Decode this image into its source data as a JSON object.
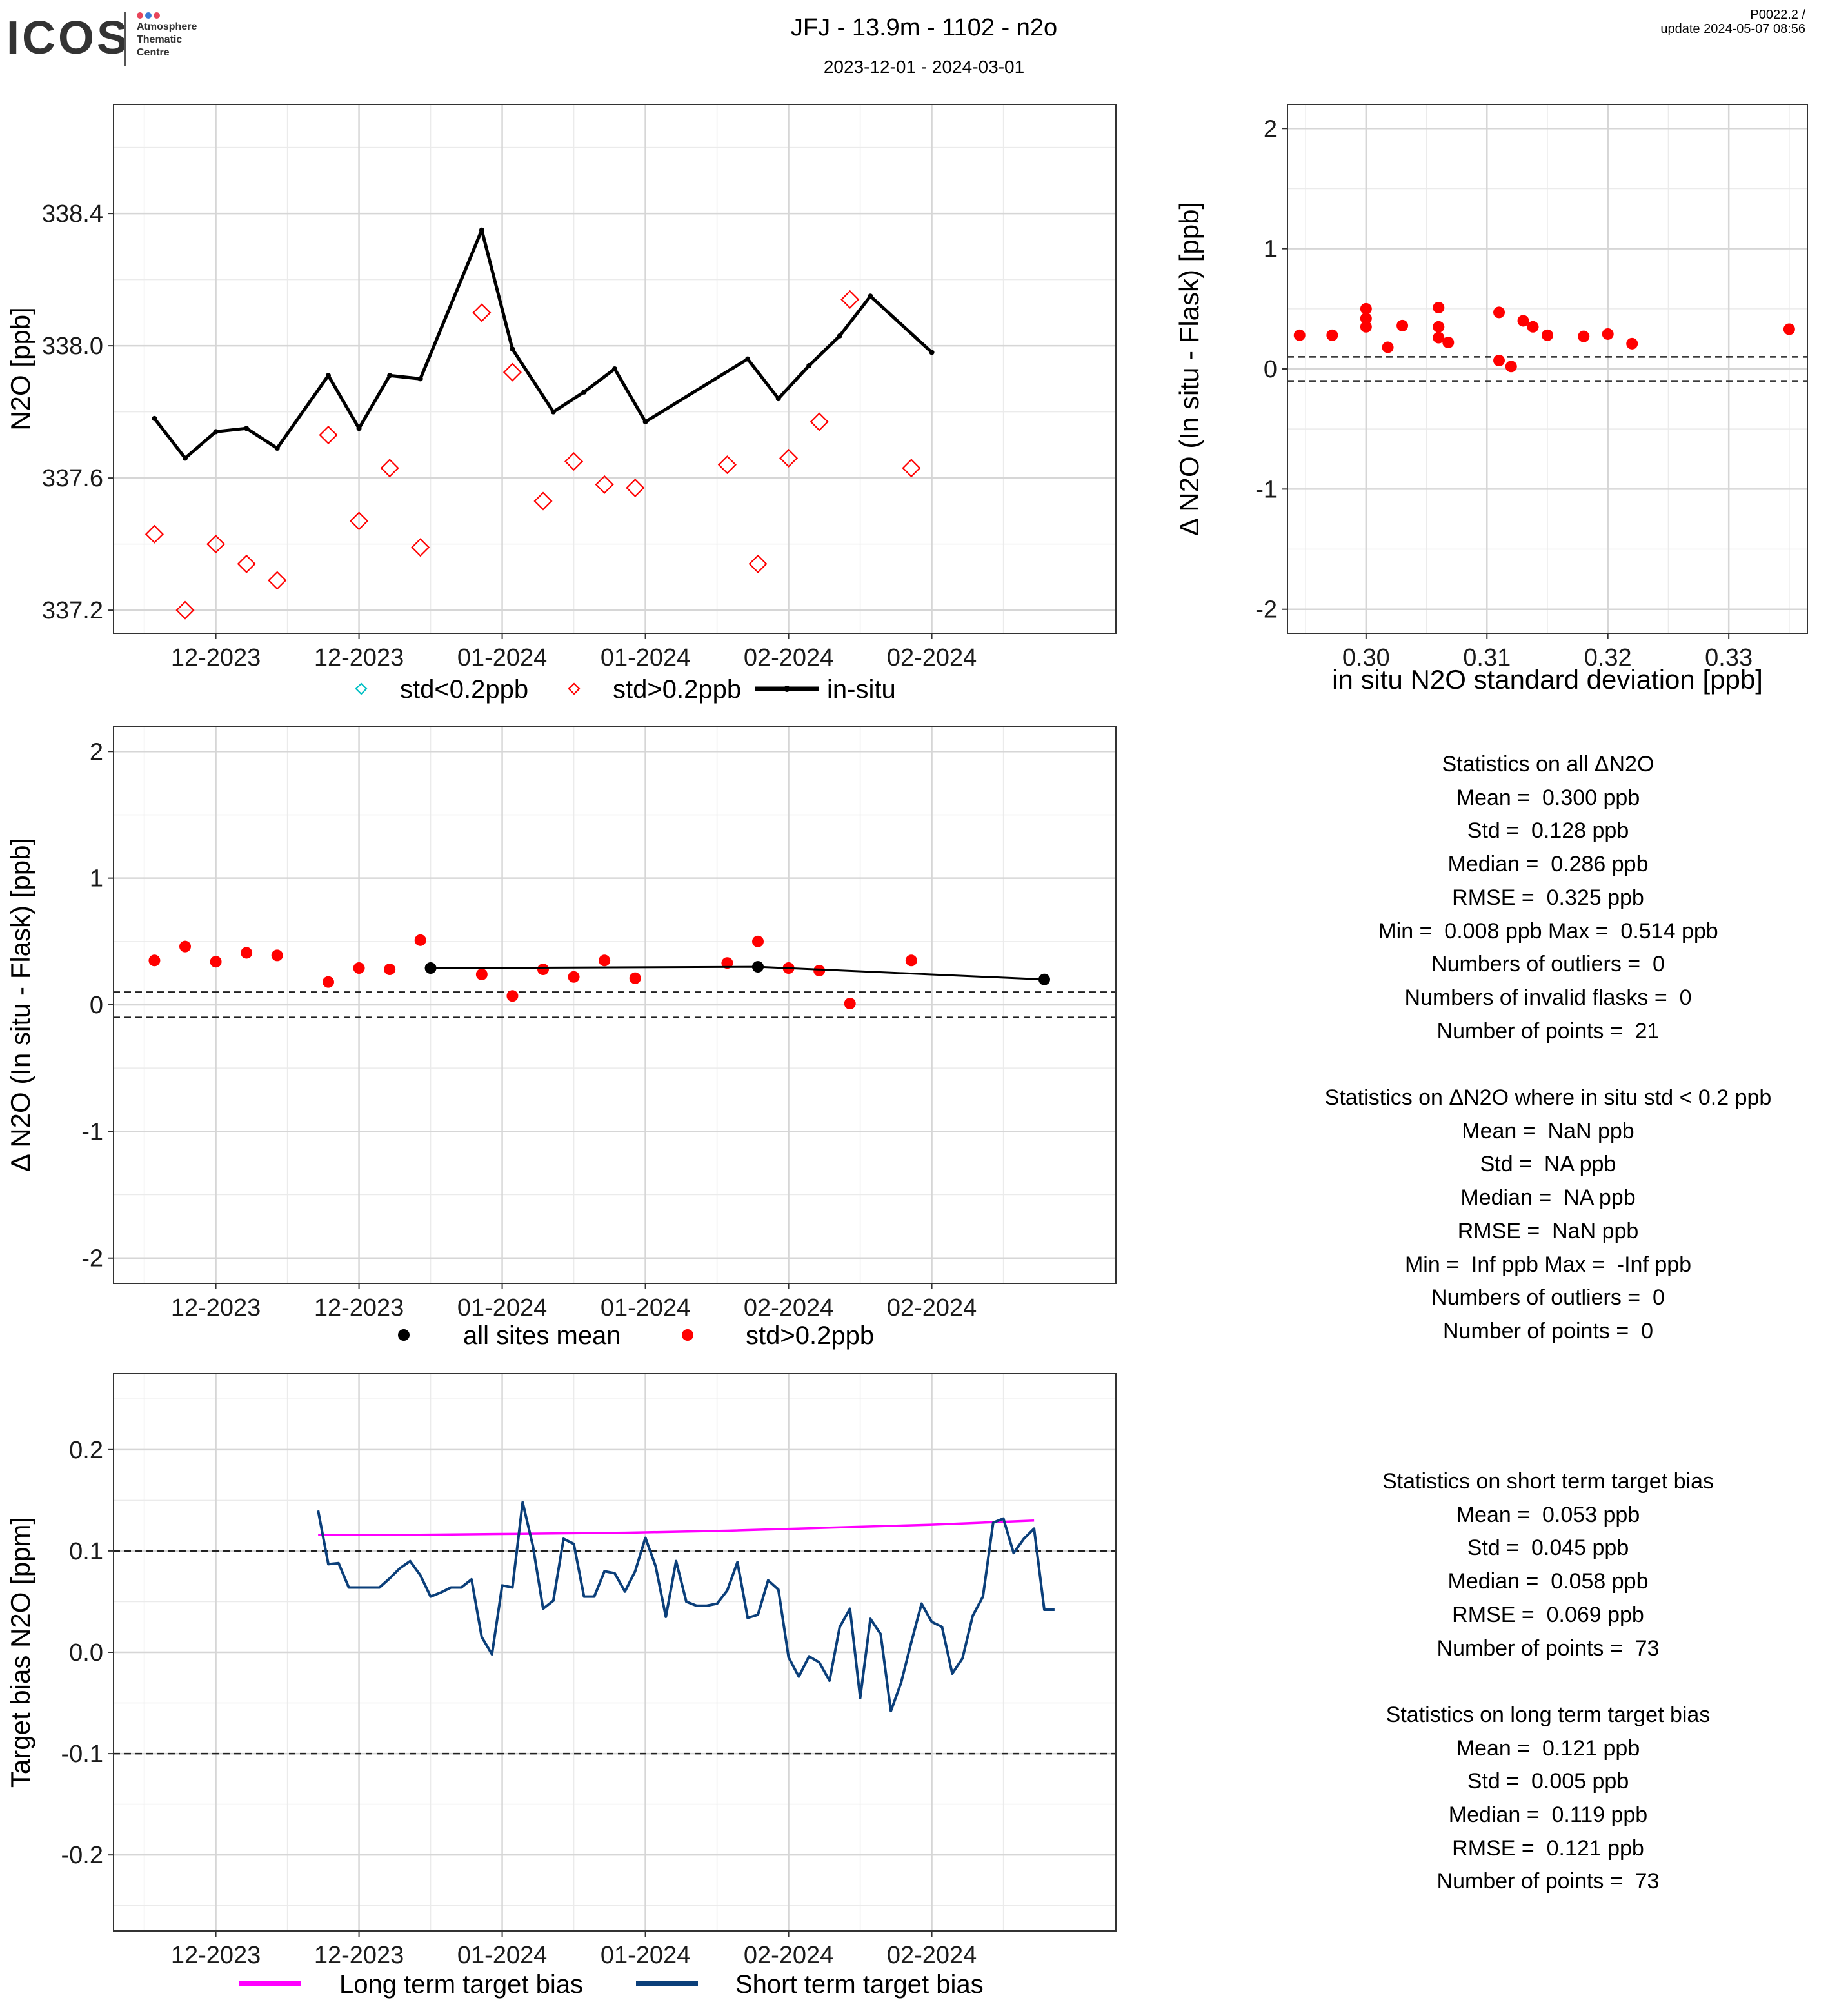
{
  "header": {
    "logo_text": "ICOS",
    "logo_subtitle": [
      "Atmosphere",
      "Thematic",
      "Centre"
    ],
    "title": "JFJ - 13.9m - 1102 - n2o",
    "subtitle": "2023-12-01 - 2024-03-01",
    "version": "P0022.2 /",
    "update": "update  2024-05-07 08:56"
  },
  "colors": {
    "insitu": "#000000",
    "flask_red": "#ff0000",
    "flask_cyan": "#00bfc4",
    "mean_black": "#000000",
    "long_term": "#ff00ff",
    "short_term": "#0b3f7a",
    "logo_dots": [
      "#e8465b",
      "#3a7bd5",
      "#e8465b"
    ]
  },
  "chart_data": [
    {
      "id": "timeseries",
      "type": "line",
      "ylabel": "N2O [ppb]",
      "ylim": [
        337.13,
        338.73
      ],
      "yticks": [
        337.2,
        337.6,
        338.0,
        338.4
      ],
      "ytick_labels": [
        "337.2",
        "337.6",
        "338.0",
        "338.4"
      ],
      "xlim": [
        "2023-11-24",
        "2024-03-01"
      ],
      "xticks": [
        "2023-12-04",
        "2023-12-18",
        "2024-01-01",
        "2024-01-15",
        "2024-01-29",
        "2024-02-12"
      ],
      "xtick_labels": [
        "12-2023",
        "12-2023",
        "01-2024",
        "01-2024",
        "02-2024",
        "02-2024"
      ],
      "grid": true,
      "series": [
        {
          "name": "in-situ",
          "kind": "line",
          "x": [
            "2023-11-28",
            "2023-12-01",
            "2023-12-04",
            "2023-12-07",
            "2023-12-10",
            "2023-12-15",
            "2023-12-18",
            "2023-12-21",
            "2023-12-24",
            "2023-12-30",
            "2024-01-02",
            "2024-01-06",
            "2024-01-09",
            "2024-01-12",
            "2024-01-15",
            "2024-01-25",
            "2024-01-28",
            "2024-01-31",
            "2024-02-03",
            "2024-02-06",
            "2024-02-12"
          ],
          "y": [
            337.78,
            337.66,
            337.74,
            337.75,
            337.69,
            337.91,
            337.75,
            337.91,
            337.9,
            338.35,
            337.99,
            337.8,
            337.86,
            337.93,
            337.77,
            337.96,
            337.84,
            337.94,
            338.03,
            338.15,
            337.98
          ]
        },
        {
          "name": "std>0.2ppb",
          "kind": "diamond",
          "x": [
            "2023-11-28",
            "2023-12-01",
            "2023-12-04",
            "2023-12-07",
            "2023-12-10",
            "2023-12-15",
            "2023-12-18",
            "2023-12-21",
            "2023-12-24",
            "2023-12-30",
            "2024-01-02",
            "2024-01-05",
            "2024-01-08",
            "2024-01-11",
            "2024-01-14",
            "2024-01-23",
            "2024-01-26",
            "2024-01-29",
            "2024-02-01",
            "2024-02-04",
            "2024-02-10"
          ],
          "y": [
            337.43,
            337.2,
            337.4,
            337.34,
            337.29,
            337.73,
            337.47,
            337.63,
            337.39,
            338.1,
            337.92,
            337.53,
            337.65,
            337.58,
            337.57,
            337.64,
            337.34,
            337.66,
            337.77,
            338.14,
            337.63
          ]
        }
      ],
      "legend": [
        "std<0.2ppb",
        "std>0.2ppb",
        "in-situ"
      ],
      "legend_placement": "bottom"
    },
    {
      "id": "scatter",
      "type": "scatter",
      "xlabel": "in situ N2O standard deviation [ppb]",
      "ylabel": "Δ N2O (In situ - Flask) [ppb]",
      "xlim": [
        0.2935,
        0.3365
      ],
      "ylim": [
        -2.2,
        2.2
      ],
      "xticks": [
        0.3,
        0.31,
        0.32,
        0.33
      ],
      "xtick_labels": [
        "0.30",
        "0.31",
        "0.32",
        "0.33"
      ],
      "yticks": [
        -2,
        -1,
        0,
        1,
        2
      ],
      "ytick_labels": [
        "-2",
        "-1",
        "0",
        "1",
        "2"
      ],
      "hlines": [
        0.1,
        -0.1
      ],
      "grid": true,
      "x": [
        0.2945,
        0.2972,
        0.3,
        0.3,
        0.3,
        0.3018,
        0.303,
        0.306,
        0.306,
        0.306,
        0.3068,
        0.311,
        0.311,
        0.312,
        0.313,
        0.3138,
        0.315,
        0.318,
        0.32,
        0.322,
        0.335
      ],
      "y": [
        0.28,
        0.28,
        0.5,
        0.42,
        0.35,
        0.18,
        0.36,
        0.51,
        0.35,
        0.26,
        0.22,
        0.47,
        0.07,
        0.02,
        0.4,
        0.35,
        0.28,
        0.27,
        0.29,
        0.21,
        0.33
      ]
    },
    {
      "id": "delta",
      "type": "scatter",
      "ylabel": "Δ N2O (In situ - Flask) [ppb]",
      "ylim": [
        -2.2,
        2.2
      ],
      "yticks": [
        -2,
        -1,
        0,
        1,
        2
      ],
      "ytick_labels": [
        "-2",
        "-1",
        "0",
        "1",
        "2"
      ],
      "xlim": [
        "2023-11-24",
        "2024-03-01"
      ],
      "xticks": [
        "2023-12-04",
        "2023-12-18",
        "2024-01-01",
        "2024-01-15",
        "2024-01-29",
        "2024-02-12"
      ],
      "xtick_labels": [
        "12-2023",
        "12-2023",
        "01-2024",
        "01-2024",
        "02-2024",
        "02-2024"
      ],
      "hlines": [
        0.1,
        -0.1
      ],
      "grid": true,
      "series": [
        {
          "name": "std>0.2ppb",
          "kind": "dot",
          "x": [
            "2023-11-28",
            "2023-12-01",
            "2023-12-04",
            "2023-12-07",
            "2023-12-10",
            "2023-12-15",
            "2023-12-18",
            "2023-12-21",
            "2023-12-24",
            "2023-12-30",
            "2024-01-02",
            "2024-01-05",
            "2024-01-08",
            "2024-01-11",
            "2024-01-14",
            "2024-01-23",
            "2024-01-26",
            "2024-01-29",
            "2024-02-01",
            "2024-02-04",
            "2024-02-10"
          ],
          "y": [
            0.35,
            0.46,
            0.34,
            0.41,
            0.39,
            0.18,
            0.29,
            0.28,
            0.51,
            0.24,
            0.07,
            0.28,
            0.22,
            0.35,
            0.21,
            0.33,
            0.5,
            0.29,
            0.27,
            0.01,
            0.35
          ]
        },
        {
          "name": "all sites mean",
          "kind": "line-dot",
          "x": [
            "2023-12-25",
            "2024-01-26",
            "2024-02-23"
          ],
          "y": [
            0.29,
            0.3,
            0.2
          ]
        }
      ],
      "legend": [
        "all sites mean",
        "std>0.2ppb"
      ],
      "legend_placement": "bottom"
    },
    {
      "id": "bias",
      "type": "line",
      "ylabel": "Target bias N2O [ppm]",
      "ylim": [
        -0.275,
        0.275
      ],
      "yticks": [
        -0.2,
        -0.1,
        0.0,
        0.1,
        0.2
      ],
      "ytick_labels": [
        "-0.2",
        "-0.1",
        "0.0",
        "0.1",
        "0.2"
      ],
      "xlim": [
        "2023-11-24",
        "2024-03-01"
      ],
      "xticks": [
        "2023-12-04",
        "2023-12-18",
        "2024-01-01",
        "2024-01-15",
        "2024-01-29",
        "2024-02-12"
      ],
      "xtick_labels": [
        "12-2023",
        "12-2023",
        "01-2024",
        "01-2024",
        "02-2024",
        "02-2024"
      ],
      "hlines": [
        0.1,
        -0.1
      ],
      "grid": true,
      "series": [
        {
          "name": "Long term target bias",
          "x": [
            "2023-12-14",
            "2023-12-24",
            "2024-01-03",
            "2024-01-13",
            "2024-01-23",
            "2024-02-02",
            "2024-02-12",
            "2024-02-22"
          ],
          "y": [
            0.116,
            0.116,
            0.117,
            0.118,
            0.12,
            0.123,
            0.126,
            0.13
          ]
        },
        {
          "name": "Short term target bias",
          "x": [
            "2023-12-14",
            "2023-12-15",
            "2023-12-16",
            "2023-12-17",
            "2023-12-18",
            "2023-12-19",
            "2023-12-20",
            "2023-12-21",
            "2023-12-22",
            "2023-12-23",
            "2023-12-24",
            "2023-12-25",
            "2023-12-26",
            "2023-12-27",
            "2023-12-28",
            "2023-12-29",
            "2023-12-30",
            "2023-12-31",
            "2024-01-01",
            "2024-01-02",
            "2024-01-03",
            "2024-01-04",
            "2024-01-05",
            "2024-01-06",
            "2024-01-07",
            "2024-01-08",
            "2024-01-09",
            "2024-01-10",
            "2024-01-11",
            "2024-01-12",
            "2024-01-13",
            "2024-01-14",
            "2024-01-15",
            "2024-01-16",
            "2024-01-17",
            "2024-01-18",
            "2024-01-19",
            "2024-01-20",
            "2024-01-21",
            "2024-01-22",
            "2024-01-23",
            "2024-01-24",
            "2024-01-25",
            "2024-01-26",
            "2024-01-27",
            "2024-01-28",
            "2024-01-29",
            "2024-01-30",
            "2024-01-31",
            "2024-02-01",
            "2024-02-02",
            "2024-02-03",
            "2024-02-04",
            "2024-02-05",
            "2024-02-06",
            "2024-02-07",
            "2024-02-08",
            "2024-02-09",
            "2024-02-10",
            "2024-02-11",
            "2024-02-12",
            "2024-02-13",
            "2024-02-14",
            "2024-02-15",
            "2024-02-16",
            "2024-02-17",
            "2024-02-18",
            "2024-02-19",
            "2024-02-20",
            "2024-02-21",
            "2024-02-22",
            "2024-02-23",
            "2024-02-24"
          ],
          "y": [
            0.14,
            0.087,
            0.088,
            0.064,
            0.064,
            0.064,
            0.064,
            0.073,
            0.083,
            0.09,
            0.076,
            0.055,
            0.059,
            0.064,
            0.064,
            0.072,
            0.015,
            -0.002,
            0.066,
            0.064,
            0.148,
            0.105,
            0.043,
            0.051,
            0.112,
            0.107,
            0.055,
            0.055,
            0.08,
            0.078,
            0.06,
            0.08,
            0.113,
            0.085,
            0.035,
            0.09,
            0.05,
            0.046,
            0.046,
            0.048,
            0.061,
            0.089,
            0.034,
            0.037,
            0.071,
            0.062,
            -0.005,
            -0.024,
            -0.004,
            -0.01,
            -0.028,
            0.025,
            0.043,
            -0.045,
            0.033,
            0.018,
            -0.058,
            -0.03,
            0.01,
            0.048,
            0.03,
            0.025,
            -0.021,
            -0.006,
            0.036,
            0.055,
            0.128,
            0.132,
            0.098,
            0.112,
            0.122,
            0.042,
            0.042
          ]
        }
      ],
      "legend": [
        "Long term target bias",
        "Short term target bias"
      ],
      "legend_placement": "bottom"
    }
  ],
  "stats_flask": [
    "Statistics on all ΔN2O",
    "Mean =  0.300 ppb",
    "Std =  0.128 ppb",
    "Median =  0.286 ppb",
    "RMSE =  0.325 ppb",
    "Min =  0.008 ppb Max =  0.514 ppb",
    "Numbers of outliers =  0",
    "Numbers of invalid flasks =  0",
    "Number of points =  21",
    "",
    "Statistics on ΔN2O where in situ std < 0.2 ppb",
    "Mean =  NaN ppb",
    "Std =  NA ppb",
    "Median =  NA ppb",
    "RMSE =  NaN ppb",
    "Min =  Inf ppb Max =  -Inf ppb",
    "Numbers of outliers =  0",
    "Number of points =  0"
  ],
  "stats_target": [
    "Statistics on short term target bias",
    "Mean =  0.053 ppb",
    "Std =  0.045 ppb",
    "Median =  0.058 ppb",
    "RMSE =  0.069 ppb",
    "Number of points =  73",
    "",
    "Statistics on long term target bias",
    "Mean =  0.121 ppb",
    "Std =  0.005 ppb",
    "Median =  0.119 ppb",
    "RMSE =  0.121 ppb",
    "Number of points =  73"
  ]
}
